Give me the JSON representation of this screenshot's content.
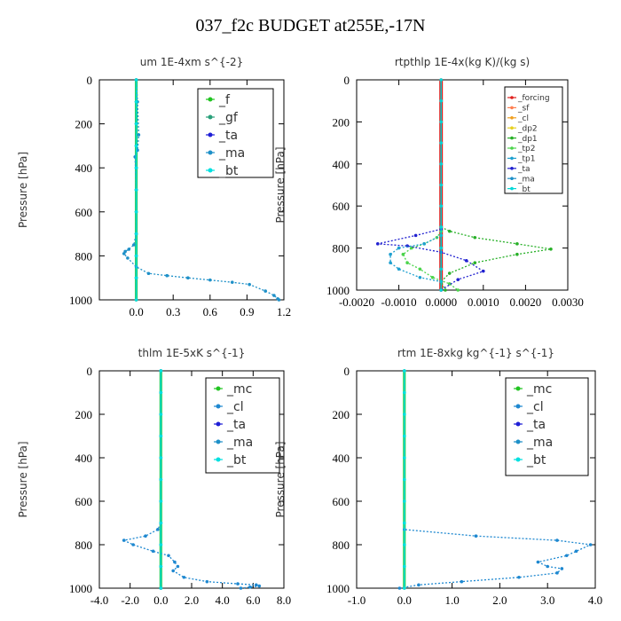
{
  "page": {
    "title": "037_f2c  BUDGET at255E,-17N"
  },
  "colors": {
    "f": "#21c421",
    "gf": "#2aa07a",
    "ta": "#1f1fd6",
    "ma": "#1e90c8",
    "bt": "#00e0e0",
    "forcing": "#e0201e",
    "sf": "#ff7f50",
    "cl_orange": "#f0a020",
    "dp2": "#e6d020",
    "dp1": "#28b028",
    "tp2": "#4cd44c",
    "tp1": "#1ea0d0",
    "ta_rt": "#2020d0",
    "ma_rt": "#1e90c8",
    "bt_rt": "#00d8d8",
    "mc": "#21c421",
    "cl": "#1e88d0"
  },
  "chart_data": [
    {
      "type": "line",
      "title": "um   1E-4xm s^{-2}",
      "ylabel": "Pressure [hPa]",
      "xlim": [
        -0.3,
        1.2
      ],
      "ylim": [
        1000,
        0
      ],
      "y_reversed": true,
      "xticks": [
        "0.0",
        "0.3",
        "0.6",
        "0.9",
        "1.2"
      ],
      "yticks": [
        "0",
        "200",
        "400",
        "600",
        "800",
        "1000"
      ],
      "legend": {
        "placement": "top-right",
        "entries": [
          "_f",
          "_gf",
          "_ta",
          "_ma",
          "_bt"
        ]
      },
      "series": [
        {
          "name": "_f",
          "color_key": "f",
          "x": [
            0,
            0,
            0,
            0,
            0,
            0,
            0,
            0,
            0,
            0,
            0
          ],
          "y": [
            0,
            100,
            200,
            300,
            400,
            500,
            600,
            700,
            800,
            900,
            1000
          ]
        },
        {
          "name": "_gf",
          "color_key": "gf",
          "x": [
            0,
            0,
            0,
            0,
            0,
            0,
            0,
            0,
            0,
            0,
            0
          ],
          "y": [
            0,
            100,
            200,
            300,
            400,
            500,
            600,
            700,
            800,
            900,
            1000
          ]
        },
        {
          "name": "_ma",
          "color_key": "ma",
          "x": [
            0,
            0.01,
            0.02,
            0.01,
            -0.01,
            0,
            0,
            -0.02,
            -0.06,
            -0.09,
            -0.1,
            -0.07,
            0,
            0.1,
            0.25,
            0.42,
            0.6,
            0.78,
            0.92,
            1.05,
            1.12,
            1.15,
            1.16
          ],
          "y": [
            0,
            100,
            250,
            320,
            350,
            500,
            700,
            750,
            770,
            780,
            790,
            810,
            850,
            880,
            890,
            900,
            910,
            920,
            930,
            960,
            980,
            995,
            1000
          ]
        },
        {
          "name": "_bt",
          "color_key": "bt",
          "x": [
            0,
            0,
            0,
            0,
            0,
            0,
            0,
            0,
            0,
            0,
            0
          ],
          "y": [
            0,
            100,
            200,
            300,
            400,
            500,
            600,
            700,
            800,
            900,
            1000
          ]
        }
      ]
    },
    {
      "type": "line",
      "title": "rtpthlp   1E-4x(kg K)/(kg s)",
      "ylabel": "Pressure [hPa]",
      "xlim": [
        -0.002,
        0.003
      ],
      "ylim": [
        1000,
        0
      ],
      "y_reversed": true,
      "xticks": [
        "-0.0020",
        "-0.0010",
        "0.0000",
        "0.0010",
        "0.0020",
        "0.0030"
      ],
      "yticks": [
        "0",
        "200",
        "400",
        "600",
        "800",
        "1000"
      ],
      "legend": {
        "placement": "top-right",
        "entries": [
          "_forcing",
          "_sf",
          "_cl",
          "_dp2",
          "_dp1",
          "_tp2",
          "_tp1",
          "_ta",
          "_ma",
          "_bt"
        ]
      },
      "series": [
        {
          "name": "_forcing",
          "color_key": "forcing",
          "x": [
            0,
            0,
            0,
            0,
            0,
            0,
            0,
            0,
            0,
            0,
            0
          ],
          "y": [
            0,
            100,
            200,
            300,
            400,
            500,
            600,
            700,
            800,
            900,
            1000
          ]
        },
        {
          "name": "_dp1",
          "color_key": "dp1",
          "x": [
            0,
            0.0002,
            0.0008,
            0.0018,
            0.0026,
            0.0018,
            0.0008,
            0.0002,
            0,
            0.0001
          ],
          "y": [
            700,
            720,
            750,
            780,
            805,
            830,
            870,
            920,
            960,
            1000
          ]
        },
        {
          "name": "_tp2",
          "color_key": "tp2",
          "x": [
            0,
            -0.0001,
            -0.0004,
            -0.0007,
            -0.0009,
            -0.0008,
            -0.0005,
            -0.0002,
            0.0002,
            0.0004
          ],
          "y": [
            720,
            750,
            780,
            800,
            830,
            870,
            900,
            940,
            970,
            1000
          ]
        },
        {
          "name": "_ta",
          "color_key": "ta_rt",
          "x": [
            0,
            -0.0006,
            -0.0015,
            -0.0008,
            0,
            0.0006,
            0.001,
            0.0004,
            0
          ],
          "y": [
            710,
            740,
            780,
            790,
            820,
            860,
            910,
            950,
            1000
          ]
        },
        {
          "name": "_tp1",
          "color_key": "tp1",
          "x": [
            0,
            -0.0004,
            -0.001,
            -0.0012,
            -0.0012,
            -0.001,
            -0.0005,
            0
          ],
          "y": [
            740,
            780,
            800,
            830,
            870,
            900,
            940,
            960
          ]
        },
        {
          "name": "_bt",
          "color_key": "bt_rt",
          "x": [
            0,
            0,
            0,
            0,
            0,
            0,
            0,
            0,
            0,
            0,
            0
          ],
          "y": [
            0,
            100,
            200,
            300,
            400,
            500,
            600,
            700,
            800,
            900,
            1000
          ]
        }
      ]
    },
    {
      "type": "line",
      "title": "thlm   1E-5xK s^{-1}",
      "ylabel": "Pressure [hPa]",
      "xlim": [
        -4,
        8
      ],
      "ylim": [
        1000,
        0
      ],
      "y_reversed": true,
      "xticks": [
        "-4.0",
        "-2.0",
        "0.0",
        "2.0",
        "4.0",
        "6.0",
        "8.0"
      ],
      "yticks": [
        "0",
        "200",
        "400",
        "600",
        "800",
        "1000"
      ],
      "legend": {
        "placement": "top-right",
        "entries": [
          "_mc",
          "_cl",
          "_ta",
          "_ma",
          "_bt"
        ]
      },
      "series": [
        {
          "name": "_mc",
          "color_key": "mc",
          "x": [
            0,
            0,
            0,
            0,
            0,
            0,
            0,
            0,
            0,
            0,
            0
          ],
          "y": [
            0,
            100,
            200,
            300,
            400,
            500,
            600,
            700,
            800,
            900,
            1000
          ]
        },
        {
          "name": "_cl",
          "color_key": "cl",
          "x": [
            0,
            0,
            -0.2,
            -1,
            -2.4,
            -1.8,
            -0.5,
            0.5,
            0.9,
            1.1,
            0.8,
            1.5,
            3,
            5,
            6.2,
            6.4,
            5.8,
            5.2
          ],
          "y": [
            0,
            700,
            730,
            760,
            780,
            800,
            830,
            850,
            880,
            900,
            920,
            950,
            970,
            980,
            985,
            990,
            995,
            1000
          ]
        },
        {
          "name": "_ma",
          "color_key": "ma",
          "x": [
            0,
            0,
            0,
            0,
            0,
            0,
            0,
            0,
            0,
            0,
            0
          ],
          "y": [
            0,
            100,
            200,
            300,
            400,
            500,
            600,
            700,
            800,
            900,
            1000
          ]
        },
        {
          "name": "_bt",
          "color_key": "bt",
          "x": [
            0,
            0,
            0,
            0,
            0,
            0,
            0,
            0,
            0,
            0,
            0
          ],
          "y": [
            0,
            100,
            200,
            300,
            400,
            500,
            600,
            700,
            800,
            900,
            1000
          ]
        }
      ]
    },
    {
      "type": "line",
      "title": "rtm   1E-8xkg kg^{-1} s^{-1}",
      "ylabel": "Pressure [hPa]",
      "xlim": [
        -1,
        4
      ],
      "ylim": [
        1000,
        0
      ],
      "y_reversed": true,
      "xticks": [
        "-1.0",
        "0.0",
        "1.0",
        "2.0",
        "3.0",
        "4.0"
      ],
      "yticks": [
        "0",
        "200",
        "400",
        "600",
        "800",
        "1000"
      ],
      "legend": {
        "placement": "top-right",
        "entries": [
          "_mc",
          "_cl",
          "_ta",
          "_ma",
          "_bt"
        ]
      },
      "series": [
        {
          "name": "_mc",
          "color_key": "mc",
          "x": [
            0,
            0,
            0,
            0,
            0,
            0,
            0,
            0,
            0,
            0,
            0
          ],
          "y": [
            0,
            100,
            200,
            300,
            400,
            500,
            600,
            700,
            800,
            900,
            1000
          ]
        },
        {
          "name": "_cl",
          "color_key": "cl",
          "x": [
            0,
            0,
            1.5,
            3.2,
            3.9,
            3.6,
            3.4,
            2.8,
            3,
            3.3,
            3.2,
            2.4,
            1.2,
            0.3,
            -0.1
          ],
          "y": [
            0,
            730,
            760,
            780,
            800,
            830,
            850,
            880,
            900,
            910,
            930,
            950,
            970,
            985,
            1000
          ]
        },
        {
          "name": "_bt",
          "color_key": "bt",
          "x": [
            0,
            0,
            0,
            0,
            0,
            0,
            0,
            0,
            0,
            0,
            0
          ],
          "y": [
            0,
            100,
            200,
            300,
            400,
            500,
            600,
            700,
            800,
            900,
            1000
          ]
        }
      ]
    }
  ]
}
